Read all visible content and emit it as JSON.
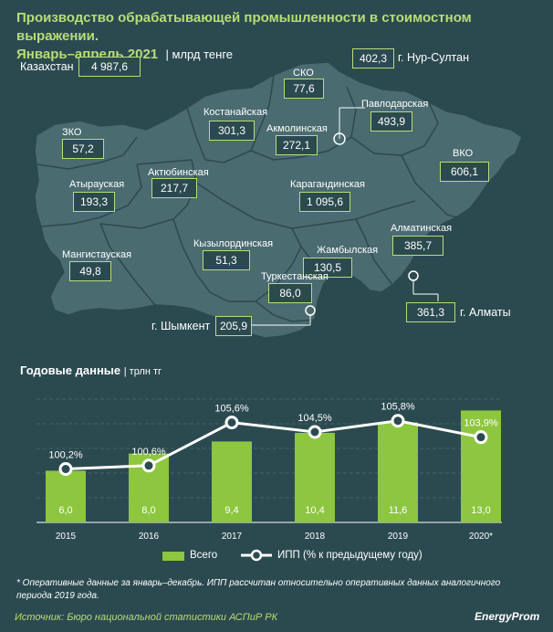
{
  "header": {
    "title_line1": "Производство обрабатывающей промышленности в стоимостном выражении.",
    "title_line2": "Январь–апрель 2021",
    "unit": "| млрд тенге"
  },
  "map": {
    "total_label": "Казахстан",
    "total_value": "4 987,6",
    "regions": [
      {
        "name": "СКО",
        "value": "77,6"
      },
      {
        "name": "г. Нур-Султан",
        "value": "402,3"
      },
      {
        "name": "Павлодарская",
        "value": "493,9"
      },
      {
        "name": "Костанайская",
        "value": "301,3"
      },
      {
        "name": "Акмолинская",
        "value": "272,1"
      },
      {
        "name": "ЗКО",
        "value": "57,2"
      },
      {
        "name": "ВКО",
        "value": "606,1"
      },
      {
        "name": "Актюбинская",
        "value": "217,7"
      },
      {
        "name": "Атырауская",
        "value": "193,3"
      },
      {
        "name": "Карагандинская",
        "value": "1 095,6"
      },
      {
        "name": "Алматинская",
        "value": "385,7"
      },
      {
        "name": "Кызылординская",
        "value": "51,3"
      },
      {
        "name": "Жамбылская",
        "value": "130,5"
      },
      {
        "name": "Мангистауская",
        "value": "49,8"
      },
      {
        "name": "Туркестанская",
        "value": "86,0"
      },
      {
        "name": "г. Алматы",
        "value": "361,3"
      },
      {
        "name": "г. Шымкент",
        "value": "205,9"
      }
    ]
  },
  "annual": {
    "title": "Годовые данные",
    "unit": "| трлн тг"
  },
  "chart_data": {
    "type": "bar",
    "categories": [
      "2015",
      "2016",
      "2017",
      "2018",
      "2019",
      "2020*"
    ],
    "series": [
      {
        "name": "Всего",
        "type": "bar",
        "values": [
          6.0,
          8.0,
          9.4,
          10.4,
          11.6,
          13.0
        ],
        "labels": [
          "6,0",
          "8,0",
          "9,4",
          "10,4",
          "11,6",
          "13,0"
        ],
        "color": "#8dc63f"
      },
      {
        "name": "ИПП (% к предыдущему году)",
        "type": "line",
        "values": [
          100.2,
          100.6,
          105.6,
          104.5,
          105.8,
          103.9
        ],
        "labels": [
          "100,2%",
          "100,6%",
          "105,6%",
          "104,5%",
          "105,8%",
          "103,9%"
        ],
        "color": "#ffffff"
      }
    ],
    "ylim_bars": [
      0,
      14
    ],
    "ylim_line": [
      94,
      108
    ]
  },
  "legend": {
    "bars": "Всего",
    "line": "ИПП (% к предыдущему году)"
  },
  "footnote": "* Оперативные данные за январь–декабрь. ИПП рассчитан относительно оперативных данных аналогичного периода 2019 года.",
  "source": "Источник: Бюро национальной статистики АСПиР РК",
  "brand": "EnergyProm",
  "colors": {
    "background": "#2b4a50",
    "accent": "#b8dd76",
    "bar": "#8dc63f",
    "map_fill": "#4a6b70"
  }
}
